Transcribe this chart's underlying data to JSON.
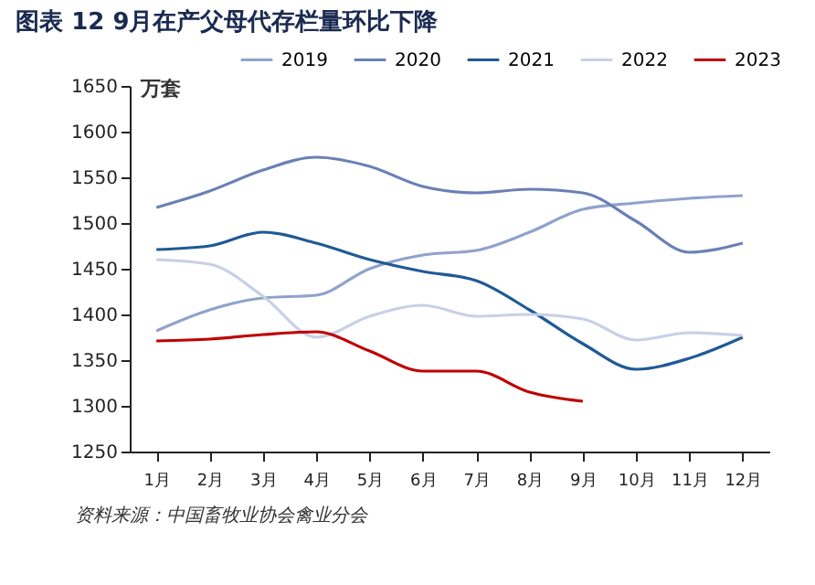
{
  "chart_data": {
    "type": "line",
    "title": "图表 12   9月在产父母代存栏量环比下降",
    "ylabel": "万套",
    "categories": [
      "1月",
      "2月",
      "3月",
      "4月",
      "5月",
      "6月",
      "7月",
      "8月",
      "9月",
      "10月",
      "11月",
      "12月"
    ],
    "series": [
      {
        "name": "2019",
        "color": "#8fa2cc",
        "values": [
          1382,
          1405,
          1418,
          1421,
          1450,
          1465,
          1470,
          1490,
          1515,
          1522,
          1527,
          1530
        ]
      },
      {
        "name": "2020",
        "color": "#6a80b5",
        "values": [
          1517,
          1535,
          1558,
          1572,
          1562,
          1540,
          1533,
          1537,
          1533,
          1502,
          1468,
          1478
        ]
      },
      {
        "name": "2021",
        "color": "#1f5a96",
        "values": [
          1471,
          1475,
          1490,
          1478,
          1460,
          1447,
          1437,
          1405,
          1368,
          1340,
          1352,
          1375
        ]
      },
      {
        "name": "2022",
        "color": "#c8d0e6",
        "values": [
          1460,
          1455,
          1420,
          1375,
          1398,
          1410,
          1398,
          1400,
          1395,
          1372,
          1380,
          1377
        ]
      },
      {
        "name": "2023",
        "color": "#c00000",
        "values": [
          1371,
          1373,
          1378,
          1381,
          1360,
          1338,
          1338,
          1315,
          1305,
          null,
          null,
          null
        ]
      }
    ],
    "ylim": [
      1250,
      1650
    ],
    "yticks": [
      1250,
      1300,
      1350,
      1400,
      1450,
      1500,
      1550,
      1600,
      1650
    ],
    "grid": false,
    "legend": "top",
    "line_style": "solid",
    "annotations": [
      "资料来源：中国畜牧业协会禽业分会"
    ]
  }
}
